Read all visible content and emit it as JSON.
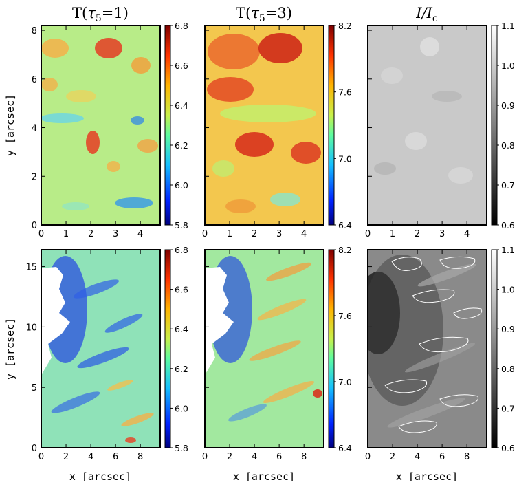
{
  "figure": {
    "column_titles": [
      {
        "prefix": "T(",
        "symbol": "τ",
        "sub": "5",
        "suffix": "=1)"
      },
      {
        "prefix": "T(",
        "symbol": "τ",
        "sub": "5",
        "suffix": "=3)"
      },
      {
        "prefix": "",
        "symbol": "I/I",
        "sub": "c",
        "suffix": ""
      }
    ],
    "ylabel": "y [arcsec]",
    "xlabel": "x [arcsec]"
  },
  "chart_data": [
    {
      "type": "heatmap",
      "row": "top",
      "column": "T(τ5=1)",
      "x_ticks": [
        "0",
        "1",
        "2",
        "3",
        "4"
      ],
      "y_ticks": [
        "0",
        "2",
        "4",
        "6",
        "8"
      ],
      "xlim": [
        0,
        4.8
      ],
      "ylim": [
        0,
        8.2
      ],
      "ylabel": "y [arcsec]",
      "colorbar": {
        "ticks": [
          "6.8",
          "6.6",
          "6.4",
          "6.2",
          "6.0",
          "5.8"
        ],
        "range": [
          5.8,
          6.8
        ],
        "colormap": "rainbow"
      }
    },
    {
      "type": "heatmap",
      "row": "top",
      "column": "T(τ5=3)",
      "x_ticks": [
        "0",
        "1",
        "2",
        "3",
        "4"
      ],
      "y_ticks": [],
      "xlim": [
        0,
        4.8
      ],
      "ylim": [
        0,
        8.2
      ],
      "colorbar": {
        "ticks": [
          "8.2",
          "7.6",
          "7.0",
          "6.4"
        ],
        "range": [
          6.4,
          8.2
        ],
        "colormap": "rainbow"
      }
    },
    {
      "type": "heatmap",
      "row": "top",
      "column": "I/Ic",
      "x_ticks": [
        "0",
        "1",
        "2",
        "3",
        "4"
      ],
      "y_ticks": [],
      "xlim": [
        0,
        4.8
      ],
      "ylim": [
        0,
        8.2
      ],
      "colorbar": {
        "ticks": [
          "1.1",
          "1.0",
          "0.9",
          "0.8",
          "0.7",
          "0.6"
        ],
        "range": [
          0.6,
          1.1
        ],
        "colormap": "gray"
      }
    },
    {
      "type": "heatmap",
      "row": "bottom",
      "column": "T(τ5=1)",
      "x_ticks": [
        "0",
        "2",
        "4",
        "6",
        "8"
      ],
      "y_ticks": [
        "0",
        "5",
        "10",
        "15"
      ],
      "xlim": [
        0,
        9.6
      ],
      "ylim": [
        0,
        16.4
      ],
      "xlabel": "x [arcsec]",
      "ylabel": "y [arcsec]",
      "colorbar": {
        "ticks": [
          "6.8",
          "6.6",
          "6.4",
          "6.2",
          "6.0",
          "5.8"
        ],
        "range": [
          5.8,
          6.8
        ],
        "colormap": "rainbow"
      }
    },
    {
      "type": "heatmap",
      "row": "bottom",
      "column": "T(τ5=3)",
      "x_ticks": [
        "0",
        "2",
        "4",
        "6",
        "8"
      ],
      "y_ticks": [],
      "xlim": [
        0,
        9.6
      ],
      "ylim": [
        0,
        16.4
      ],
      "xlabel": "x [arcsec]",
      "colorbar": {
        "ticks": [
          "8.2",
          "7.6",
          "7.0",
          "6.4"
        ],
        "range": [
          6.4,
          8.2
        ],
        "colormap": "rainbow"
      }
    },
    {
      "type": "heatmap",
      "row": "bottom",
      "column": "I/Ic",
      "x_ticks": [
        "0",
        "2",
        "4",
        "6",
        "8"
      ],
      "y_ticks": [],
      "xlim": [
        0,
        9.6
      ],
      "ylim": [
        0,
        16.4
      ],
      "xlabel": "x [arcsec]",
      "contours": "white",
      "colorbar": {
        "ticks": [
          "1.1",
          "1.0",
          "0.9",
          "0.8",
          "0.7",
          "0.6"
        ],
        "range": [
          0.6,
          1.1
        ],
        "colormap": "gray"
      }
    }
  ]
}
